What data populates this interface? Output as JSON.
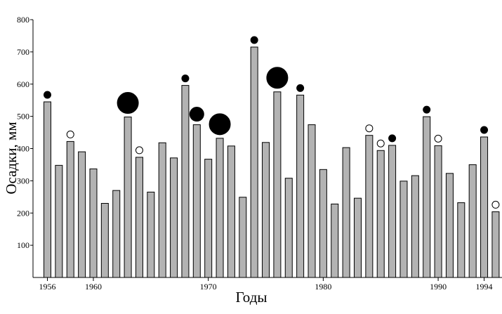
{
  "chart_data": {
    "type": "bar",
    "xlabel": "Годы",
    "ylabel": "Осадки, мм",
    "ylim": [
      0,
      800
    ],
    "yticks": [
      100,
      200,
      300,
      400,
      500,
      600,
      700,
      800
    ],
    "xticks": [
      1956,
      1960,
      1970,
      1980,
      1990,
      1994
    ],
    "grid": false,
    "colors": {
      "bar": "#b3b3b3",
      "outline": "#000000",
      "marker": "#000000"
    },
    "series": [
      {
        "values": [
          {
            "x": 1956,
            "y": 545
          },
          {
            "x": 1957,
            "y": 348
          },
          {
            "x": 1958,
            "y": 422
          },
          {
            "x": 1959,
            "y": 390
          },
          {
            "x": 1960,
            "y": 337
          },
          {
            "x": 1961,
            "y": 230
          },
          {
            "x": 1962,
            "y": 270
          },
          {
            "x": 1963,
            "y": 498
          },
          {
            "x": 1964,
            "y": 373
          },
          {
            "x": 1965,
            "y": 265
          },
          {
            "x": 1966,
            "y": 418
          },
          {
            "x": 1967,
            "y": 371
          },
          {
            "x": 1968,
            "y": 596
          },
          {
            "x": 1969,
            "y": 474
          },
          {
            "x": 1970,
            "y": 367
          },
          {
            "x": 1971,
            "y": 432
          },
          {
            "x": 1972,
            "y": 408
          },
          {
            "x": 1973,
            "y": 249
          },
          {
            "x": 1974,
            "y": 715
          },
          {
            "x": 1975,
            "y": 419
          },
          {
            "x": 1976,
            "y": 576
          },
          {
            "x": 1977,
            "y": 308
          },
          {
            "x": 1978,
            "y": 566
          },
          {
            "x": 1979,
            "y": 474
          },
          {
            "x": 1980,
            "y": 335
          },
          {
            "x": 1981,
            "y": 228
          },
          {
            "x": 1982,
            "y": 403
          },
          {
            "x": 1983,
            "y": 246
          },
          {
            "x": 1984,
            "y": 441
          },
          {
            "x": 1985,
            "y": 394
          },
          {
            "x": 1986,
            "y": 410
          },
          {
            "x": 1987,
            "y": 299
          },
          {
            "x": 1988,
            "y": 316
          },
          {
            "x": 1989,
            "y": 499
          },
          {
            "x": 1990,
            "y": 409
          },
          {
            "x": 1991,
            "y": 323
          },
          {
            "x": 1992,
            "y": 232
          },
          {
            "x": 1993,
            "y": 350
          },
          {
            "x": 1994,
            "y": 436
          },
          {
            "x": 1995,
            "y": 204
          }
        ]
      }
    ],
    "markers": [
      {
        "x": 1956,
        "style": "filled",
        "size": "small"
      },
      {
        "x": 1958,
        "style": "open",
        "size": "small"
      },
      {
        "x": 1963,
        "style": "filled",
        "size": "large"
      },
      {
        "x": 1964,
        "style": "open",
        "size": "small"
      },
      {
        "x": 1968,
        "style": "filled",
        "size": "small"
      },
      {
        "x": 1969,
        "style": "filled",
        "size": "medium"
      },
      {
        "x": 1971,
        "style": "filled",
        "size": "large"
      },
      {
        "x": 1974,
        "style": "filled",
        "size": "small"
      },
      {
        "x": 1976,
        "style": "filled",
        "size": "large"
      },
      {
        "x": 1978,
        "style": "filled",
        "size": "small"
      },
      {
        "x": 1984,
        "style": "open",
        "size": "small"
      },
      {
        "x": 1985,
        "style": "open",
        "size": "small"
      },
      {
        "x": 1986,
        "style": "filled",
        "size": "small"
      },
      {
        "x": 1989,
        "style": "filled",
        "size": "small"
      },
      {
        "x": 1990,
        "style": "open",
        "size": "small"
      },
      {
        "x": 1994,
        "style": "filled",
        "size": "small"
      },
      {
        "x": 1995,
        "style": "open",
        "size": "small"
      }
    ]
  }
}
